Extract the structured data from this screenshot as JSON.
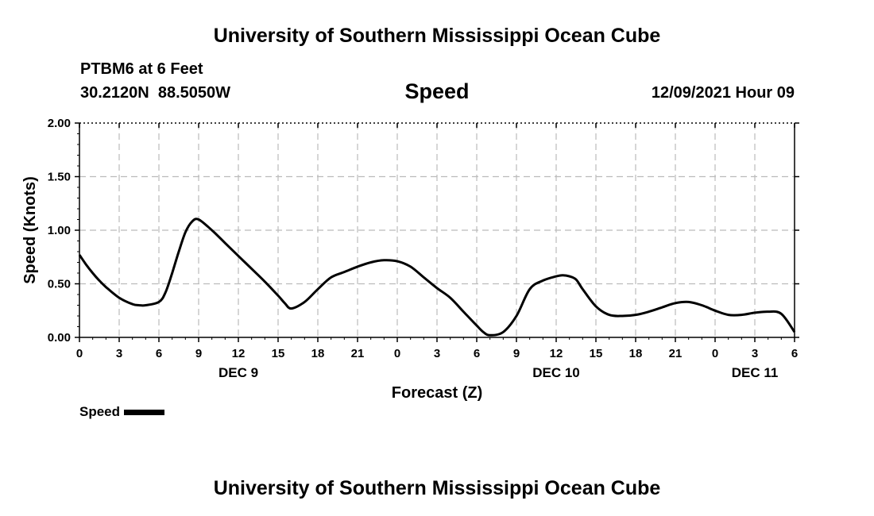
{
  "header": {
    "title": "University of Southern Mississippi Ocean Cube",
    "station": "PTBM6 at 6 Feet",
    "coords": "30.2120N  88.5050W",
    "parameter": "Speed",
    "issued": "12/09/2021 Hour 09"
  },
  "footer": {
    "title": "University of Southern Mississippi Ocean Cube"
  },
  "legend": {
    "label": "Speed",
    "color": "#000000"
  },
  "chart_data": {
    "type": "line",
    "title": "Speed",
    "xlabel": "Forecast (Z)",
    "ylabel": "Speed (Knots)",
    "xlim": [
      0,
      54
    ],
    "ylim": [
      0,
      2
    ],
    "grid": true,
    "legend_position": "bottom-left",
    "x_ticks": [
      0,
      3,
      6,
      9,
      12,
      15,
      18,
      21,
      24,
      27,
      30,
      33,
      36,
      39,
      42,
      45,
      48,
      51,
      54
    ],
    "x_tick_labels": [
      "0",
      "3",
      "6",
      "9",
      "12",
      "15",
      "18",
      "21",
      "0",
      "3",
      "6",
      "9",
      "12",
      "15",
      "18",
      "21",
      "0",
      "3",
      "6"
    ],
    "date_labels": [
      {
        "x": 12,
        "label": "DEC 9"
      },
      {
        "x": 36,
        "label": "DEC 10"
      },
      {
        "x": 51,
        "label": "DEC 11"
      }
    ],
    "y_ticks": [
      0,
      0.5,
      1,
      1.5,
      2
    ],
    "y_tick_labels": [
      "0.00",
      "0.50",
      "1.00",
      "1.50",
      "2.00"
    ],
    "series": [
      {
        "name": "Speed",
        "color": "#000000",
        "x": [
          0,
          0.5,
          1,
          1.5,
          2,
          3,
          4,
          4.5,
          5,
          6,
          6.5,
          7,
          7.5,
          8,
          8.5,
          9,
          10,
          11,
          12,
          13,
          14,
          15,
          15.5,
          16,
          17,
          18,
          19,
          20,
          21,
          22,
          23,
          24,
          25,
          26,
          27,
          28,
          29,
          30,
          30.5,
          31,
          32,
          33,
          34,
          35,
          36,
          36.5,
          37,
          37.5,
          38,
          39,
          40,
          41,
          42,
          43,
          44,
          45,
          46,
          47,
          48,
          49,
          50,
          51,
          52,
          53,
          54
        ],
        "y": [
          0.77,
          0.68,
          0.6,
          0.53,
          0.47,
          0.37,
          0.31,
          0.3,
          0.3,
          0.33,
          0.42,
          0.6,
          0.8,
          0.98,
          1.08,
          1.1,
          1.0,
          0.88,
          0.76,
          0.64,
          0.52,
          0.39,
          0.32,
          0.27,
          0.33,
          0.45,
          0.56,
          0.61,
          0.66,
          0.7,
          0.72,
          0.71,
          0.66,
          0.56,
          0.46,
          0.37,
          0.24,
          0.11,
          0.05,
          0.02,
          0.05,
          0.2,
          0.45,
          0.53,
          0.57,
          0.58,
          0.57,
          0.54,
          0.45,
          0.29,
          0.21,
          0.2,
          0.21,
          0.24,
          0.28,
          0.32,
          0.33,
          0.3,
          0.25,
          0.21,
          0.21,
          0.23,
          0.24,
          0.22,
          0.05
        ]
      }
    ]
  }
}
